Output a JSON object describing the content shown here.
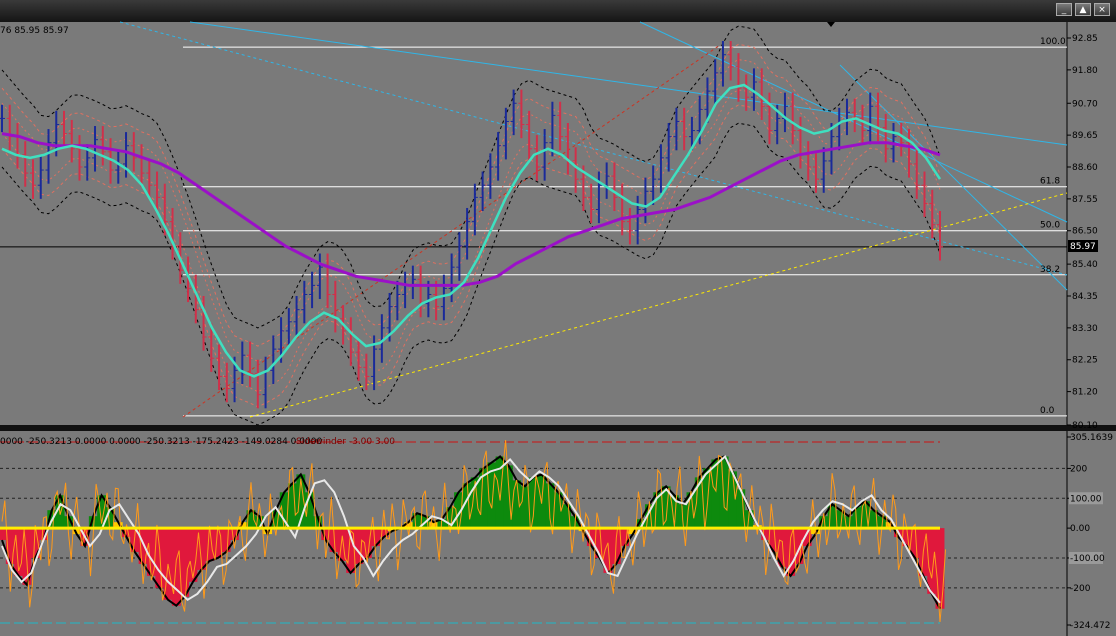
{
  "window": {
    "buttons": [
      {
        "name": "minimize-button",
        "glyph": "_"
      },
      {
        "name": "restore-button",
        "glyph": "▲"
      },
      {
        "name": "close-button",
        "glyph": "×"
      }
    ]
  },
  "main_panel": {
    "header_text": "76 85.95 85.97",
    "current_price": "85.97",
    "fib_levels": [
      {
        "label": "100.0",
        "price": 92.55
      },
      {
        "label": "61.8",
        "price": 87.95
      },
      {
        "label": "50.0",
        "price": 86.5
      },
      {
        "label": "38.2",
        "price": 85.05
      },
      {
        "label": "0.0",
        "price": 80.4
      }
    ],
    "price_ticks": [
      "92.85",
      "91.80",
      "90.70",
      "89.65",
      "88.60",
      "87.55",
      "86.50",
      "85.40",
      "84.35",
      "83.30",
      "82.25",
      "81.20",
      "80.10"
    ]
  },
  "sub_panel": {
    "header_text": "0000 -250.3213 0.0000 0.0000 -250.3213 -175.2423 -149.0284 0.0000",
    "indicator_name": "Sidewinder -3.00 3.00",
    "ticks": [
      "305.1639",
      "200",
      "100.00",
      "0.00",
      "-100.00",
      "-200",
      "-324.472"
    ]
  },
  "chart_data": {
    "type": "ohlc",
    "main": {
      "price_axis": [
        "92.85",
        "91.80",
        "90.70",
        "89.65",
        "88.60",
        "87.55",
        "86.50",
        "85.40",
        "84.35",
        "83.30",
        "82.25",
        "81.20",
        "80.10"
      ],
      "ylim": [
        80.1,
        92.85
      ],
      "last_price": 85.97,
      "bars_close": [
        90.2,
        89.6,
        89.0,
        88.4,
        88.0,
        88.5,
        89.4,
        90.0,
        89.7,
        89.2,
        88.6,
        88.9,
        89.5,
        89.1,
        88.5,
        88.7,
        89.3,
        88.9,
        88.4,
        88.0,
        87.6,
        86.8,
        86.0,
        85.2,
        84.6,
        83.9,
        83.0,
        82.3,
        81.7,
        81.3,
        81.9,
        82.4,
        81.8,
        81.1,
        81.9,
        82.6,
        83.2,
        83.5,
        83.9,
        84.4,
        84.7,
        85.3,
        84.4,
        83.6,
        83.2,
        82.5,
        82.0,
        81.7,
        82.6,
        83.3,
        84.0,
        84.4,
        84.7,
        84.9,
        84.1,
        84.4,
        84.0,
        84.6,
        85.3,
        86.0,
        86.8,
        87.6,
        88.0,
        88.6,
        89.3,
        90.1,
        90.7,
        90.0,
        89.2,
        88.6,
        89.4,
        90.3,
        89.6,
        88.8,
        88.2,
        87.6,
        87.2,
        88.0,
        88.3,
        87.6,
        86.8,
        86.5,
        87.2,
        87.8,
        88.2,
        88.9,
        89.6,
        90.1,
        89.6,
        89.8,
        90.5,
        91.1,
        91.7,
        92.3,
        91.9,
        91.2,
        90.9,
        91.4,
        90.6,
        89.8,
        90.2,
        90.6,
        89.8,
        89.0,
        88.6,
        88.2,
        88.8,
        89.6,
        90.1,
        90.4,
        90.2,
        89.8,
        90.6,
        89.9,
        89.2,
        89.6,
        89.4,
        88.7,
        88.0,
        87.4,
        86.7,
        85.97
      ],
      "ema_fast": [
        89.2,
        89.0,
        88.9,
        89.0,
        89.2,
        89.3,
        89.2,
        89.0,
        88.8,
        88.5,
        88.0,
        87.2,
        86.3,
        85.3,
        84.3,
        83.3,
        82.5,
        81.9,
        81.7,
        81.9,
        82.4,
        83.0,
        83.5,
        83.8,
        83.6,
        83.1,
        82.7,
        82.8,
        83.2,
        83.7,
        84.1,
        84.3,
        84.4,
        84.8,
        85.6,
        86.6,
        87.6,
        88.4,
        89.0,
        89.2,
        89.0,
        88.6,
        88.3,
        88.0,
        87.7,
        87.4,
        87.3,
        87.6,
        88.3,
        89.0,
        89.8,
        90.7,
        91.2,
        91.3,
        91.0,
        90.6,
        90.2,
        89.9,
        89.7,
        89.8,
        90.1,
        90.2,
        90.0,
        89.8,
        89.7,
        89.4,
        88.9,
        88.2
      ],
      "ma_slow": [
        89.7,
        89.6,
        89.4,
        89.3,
        89.3,
        89.3,
        89.2,
        89.1,
        88.9,
        88.7,
        88.4,
        88.0,
        87.6,
        87.2,
        86.8,
        86.4,
        86.0,
        85.7,
        85.4,
        85.2,
        85.0,
        84.9,
        84.8,
        84.7,
        84.7,
        84.7,
        84.7,
        84.8,
        85.0,
        85.4,
        85.7,
        86.0,
        86.3,
        86.5,
        86.7,
        86.9,
        87.0,
        87.1,
        87.2,
        87.4,
        87.6,
        87.9,
        88.2,
        88.5,
        88.8,
        89.0,
        89.1,
        89.2,
        89.3,
        89.4,
        89.4,
        89.3,
        89.2,
        89.0
      ]
    },
    "sub": {
      "indicator": "Sidewinder -3.00 3.00",
      "ylim": [
        -324.472,
        305.1639
      ],
      "ticks": [
        "305.1639",
        "200",
        "100.00",
        "0.00",
        "-100.00",
        "-200",
        "-324.472"
      ],
      "histogram": [
        -40,
        -120,
        -160,
        -190,
        -100,
        -40,
        60,
        110,
        40,
        -20,
        -60,
        40,
        110,
        70,
        20,
        -30,
        -80,
        -120,
        -160,
        -200,
        -240,
        -260,
        -230,
        -180,
        -140,
        -110,
        -100,
        -80,
        -40,
        20,
        60,
        40,
        -20,
        60,
        120,
        150,
        180,
        120,
        40,
        -40,
        -80,
        -110,
        -150,
        -120,
        -100,
        -60,
        -30,
        -10,
        0,
        20,
        50,
        40,
        20,
        30,
        70,
        120,
        150,
        170,
        200,
        220,
        240,
        210,
        160,
        140,
        170,
        180,
        150,
        120,
        80,
        40,
        -10,
        -60,
        -100,
        -150,
        -120,
        -60,
        -20,
        30,
        80,
        120,
        140,
        110,
        80,
        120,
        170,
        200,
        230,
        240,
        190,
        130,
        60,
        10,
        -40,
        -80,
        -130,
        -160,
        -120,
        -60,
        -20,
        40,
        80,
        60,
        40,
        70,
        90,
        60,
        40,
        20,
        -30,
        -60,
        -100,
        -160,
        -220,
        -270
      ],
      "line_white": [
        -60,
        -140,
        -180,
        -150,
        -60,
        20,
        80,
        60,
        0,
        -60,
        -20,
        60,
        80,
        30,
        -20,
        -90,
        -140,
        -180,
        -210,
        -240,
        -220,
        -180,
        -130,
        -120,
        -90,
        -60,
        -20,
        40,
        70,
        20,
        -30,
        70,
        150,
        160,
        120,
        40,
        -60,
        -100,
        -160,
        -110,
        -70,
        -40,
        -20,
        10,
        40,
        30,
        10,
        60,
        120,
        170,
        190,
        200,
        230,
        190,
        160,
        190,
        170,
        140,
        90,
        40,
        -20,
        -80,
        -150,
        -160,
        -90,
        -20,
        40,
        100,
        130,
        90,
        80,
        130,
        180,
        210,
        240,
        170,
        100,
        30,
        -30,
        -100,
        -160,
        -110,
        -40,
        20,
        60,
        90,
        80,
        60,
        90,
        110,
        60,
        30,
        -30,
        -90,
        -150,
        -210,
        -250
      ]
    },
    "fib_retracement": [
      "100.0",
      "61.8",
      "50.0",
      "38.2",
      "0.0"
    ]
  }
}
